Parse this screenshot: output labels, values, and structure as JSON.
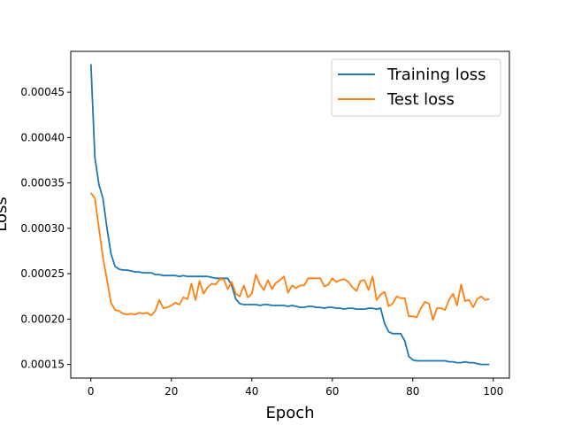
{
  "chart_data": {
    "type": "line",
    "title": "",
    "xlabel": "Epoch",
    "ylabel": "Loss",
    "xlim": [
      -5,
      104
    ],
    "ylim": [
      0.000135,
      0.000495
    ],
    "x_ticks": [
      0,
      20,
      40,
      60,
      80,
      100
    ],
    "x_tick_labels": [
      "0",
      "20",
      "40",
      "60",
      "80",
      "100"
    ],
    "y_ticks": [
      0.00015,
      0.0002,
      0.00025,
      0.0003,
      0.00035,
      0.0004,
      0.00045
    ],
    "y_tick_labels": [
      "0.00015",
      "0.00020",
      "0.00025",
      "0.00030",
      "0.00035",
      "0.00040",
      "0.00045"
    ],
    "grid": false,
    "legend_position": "top-right",
    "x": [
      0,
      1,
      2,
      3,
      4,
      5,
      6,
      7,
      8,
      9,
      10,
      11,
      12,
      13,
      14,
      15,
      16,
      17,
      18,
      19,
      20,
      21,
      22,
      23,
      24,
      25,
      26,
      27,
      28,
      29,
      30,
      31,
      32,
      33,
      34,
      35,
      36,
      37,
      38,
      39,
      40,
      41,
      42,
      43,
      44,
      45,
      46,
      47,
      48,
      49,
      50,
      51,
      52,
      53,
      54,
      55,
      56,
      57,
      58,
      59,
      60,
      61,
      62,
      63,
      64,
      65,
      66,
      67,
      68,
      69,
      70,
      71,
      72,
      73,
      74,
      75,
      76,
      77,
      78,
      79,
      80,
      81,
      82,
      83,
      84,
      85,
      86,
      87,
      88,
      89,
      90,
      91,
      92,
      93,
      94,
      95,
      96,
      97,
      98,
      99
    ],
    "series": [
      {
        "name": "Training loss",
        "color": "#1f77b4",
        "values": [
          0.000481,
          0.000378,
          0.000348,
          0.000333,
          0.0003,
          0.000272,
          0.000258,
          0.000255,
          0.000254,
          0.000254,
          0.000253,
          0.000252,
          0.000252,
          0.000251,
          0.000251,
          0.000251,
          0.000249,
          0.000249,
          0.000248,
          0.000248,
          0.000248,
          0.000248,
          0.000247,
          0.000248,
          0.000247,
          0.000247,
          0.000247,
          0.000247,
          0.000247,
          0.000247,
          0.000246,
          0.000245,
          0.000245,
          0.000245,
          0.000245,
          0.000237,
          0.000222,
          0.000217,
          0.000216,
          0.000216,
          0.000216,
          0.000216,
          0.000215,
          0.000216,
          0.000216,
          0.000215,
          0.000215,
          0.000215,
          0.000215,
          0.000214,
          0.000215,
          0.000214,
          0.000213,
          0.000213,
          0.000214,
          0.000214,
          0.000213,
          0.000213,
          0.000212,
          0.000213,
          0.000213,
          0.000212,
          0.000212,
          0.000211,
          0.000212,
          0.000212,
          0.000211,
          0.000211,
          0.000211,
          0.000212,
          0.000212,
          0.000211,
          0.000212,
          0.000195,
          0.000186,
          0.000184,
          0.000184,
          0.000184,
          0.000176,
          0.000159,
          0.000155,
          0.000154,
          0.000154,
          0.000154,
          0.000154,
          0.000154,
          0.000154,
          0.000154,
          0.000154,
          0.000153,
          0.000153,
          0.000152,
          0.000152,
          0.000153,
          0.000152,
          0.000152,
          0.000151,
          0.00015,
          0.00015,
          0.00015
        ]
      },
      {
        "name": "Test loss",
        "color": "#ff7f0e",
        "values": [
          0.000339,
          0.000333,
          0.0003,
          0.000268,
          0.000243,
          0.000218,
          0.00021,
          0.000209,
          0.000206,
          0.000205,
          0.000206,
          0.000205,
          0.000207,
          0.000206,
          0.000207,
          0.000204,
          0.000209,
          0.000221,
          0.000212,
          0.000213,
          0.000215,
          0.000218,
          0.000216,
          0.000224,
          0.000222,
          0.000239,
          0.000221,
          0.000242,
          0.000228,
          0.000235,
          0.000239,
          0.000238,
          0.000244,
          0.000244,
          0.000233,
          0.000241,
          0.000228,
          0.000225,
          0.000237,
          0.000224,
          0.000228,
          0.000249,
          0.000238,
          0.000232,
          0.000243,
          0.000233,
          0.00024,
          0.000243,
          0.000247,
          0.000229,
          0.000237,
          0.000234,
          0.000237,
          0.000237,
          0.000245,
          0.000245,
          0.000245,
          0.000245,
          0.000236,
          0.000238,
          0.000245,
          0.000241,
          0.000243,
          0.000244,
          0.000241,
          0.000235,
          0.000231,
          0.000242,
          0.000243,
          0.000232,
          0.000247,
          0.000221,
          0.000227,
          0.00023,
          0.000214,
          0.000217,
          0.000225,
          0.000223,
          0.000223,
          0.000203,
          0.000203,
          0.000202,
          0.000212,
          0.000219,
          0.000217,
          0.000199,
          0.000212,
          0.000212,
          0.00021,
          0.000221,
          0.000228,
          0.000215,
          0.000238,
          0.00022,
          0.000221,
          0.000213,
          0.000222,
          0.000225,
          0.000221,
          0.000222
        ]
      }
    ]
  }
}
